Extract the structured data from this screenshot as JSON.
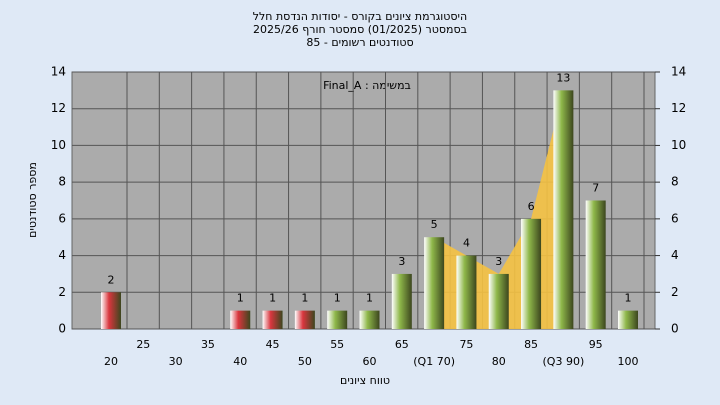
{
  "chart_data": {
    "type": "bar",
    "title": [
      "היסטוגרמת ציונים בקורס - יסודות הנדסת חלל",
      "בסמסטר  (01/2025)  סמסטר חורף 2025/26",
      "סטודנטים רשומים - 85"
    ],
    "annotation": "Final_A : במשימה",
    "x_label": "טווח ציונים",
    "y_label": "מספר סטודנטים",
    "categories": [
      "20",
      "25",
      "30",
      "35",
      "40",
      "45",
      "50",
      "55",
      "60",
      "65",
      "(Q1 70)",
      "75",
      "80",
      "85",
      "(Q3 90)",
      "95",
      "100"
    ],
    "values": [
      2,
      0,
      0,
      0,
      1,
      1,
      1,
      1,
      1,
      3,
      5,
      4,
      3,
      6,
      13,
      7,
      1
    ],
    "colors": [
      "#d9363e",
      "#d9363e",
      "#d9363e",
      "#d9363e",
      "#d9363e",
      "#d9363e",
      "#d9363e",
      "#8fb84a",
      "#8fb84a",
      "#8fb84a",
      "#8fb84a",
      "#8fb84a",
      "#8fb84a",
      "#8fb84a",
      "#8fb84a",
      "#8fb84a",
      "#8fb84a"
    ],
    "quartile_area_color": "#f5c242",
    "ylim": [
      0,
      14
    ],
    "yticks": [
      0,
      2,
      4,
      6,
      8,
      10,
      12,
      14
    ],
    "y2lim": [
      0,
      14
    ],
    "y2ticks": [
      0,
      2,
      4,
      6,
      8,
      10,
      12,
      14
    ],
    "grid": true
  }
}
